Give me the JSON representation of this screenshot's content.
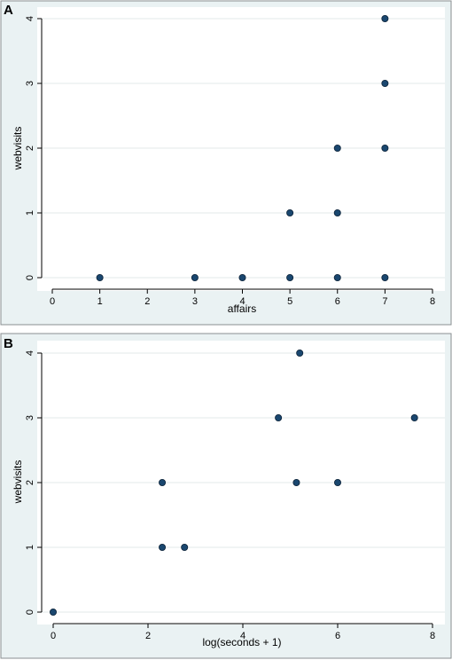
{
  "chart_data": [
    {
      "type": "scatter",
      "panel_label": "A",
      "xlabel": "affairs",
      "ylabel": "webvisits",
      "xlim": [
        0,
        8
      ],
      "ylim": [
        0,
        4
      ],
      "xticks": [
        0,
        1,
        2,
        3,
        4,
        5,
        6,
        7,
        8
      ],
      "yticks": [
        0,
        1,
        2,
        3,
        4
      ],
      "grid": true,
      "point_color": "#1a476f",
      "points": [
        {
          "x": 1,
          "y": 0
        },
        {
          "x": 3,
          "y": 0
        },
        {
          "x": 4,
          "y": 0
        },
        {
          "x": 5,
          "y": 0
        },
        {
          "x": 6,
          "y": 0
        },
        {
          "x": 7,
          "y": 0
        },
        {
          "x": 5,
          "y": 1
        },
        {
          "x": 6,
          "y": 1
        },
        {
          "x": 6,
          "y": 2
        },
        {
          "x": 7,
          "y": 2
        },
        {
          "x": 7,
          "y": 3
        },
        {
          "x": 7,
          "y": 4
        }
      ]
    },
    {
      "type": "scatter",
      "panel_label": "B",
      "xlabel": "log(seconds + 1)",
      "ylabel": "webvisits",
      "xlim": [
        0,
        8
      ],
      "ylim": [
        0,
        4
      ],
      "xticks": [
        0,
        2,
        4,
        6,
        8
      ],
      "yticks": [
        0,
        1,
        2,
        3,
        4
      ],
      "grid": true,
      "point_color": "#1a476f",
      "points": [
        {
          "x": 0,
          "y": 0
        },
        {
          "x": 2.3,
          "y": 1
        },
        {
          "x": 2.77,
          "y": 1
        },
        {
          "x": 2.3,
          "y": 2
        },
        {
          "x": 5.13,
          "y": 2
        },
        {
          "x": 6.0,
          "y": 2
        },
        {
          "x": 4.75,
          "y": 3
        },
        {
          "x": 7.62,
          "y": 3
        },
        {
          "x": 5.2,
          "y": 4
        }
      ]
    }
  ]
}
